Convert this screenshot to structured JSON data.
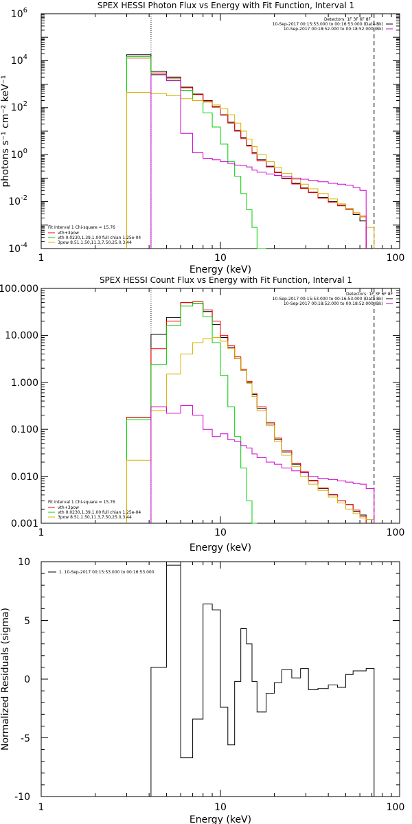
{
  "chart_data": [
    {
      "type": "line",
      "title": "SPEX HESSI Photon Flux vs Energy with Fit Function, Interval 1",
      "xlabel": "Energy (keV)",
      "ylabel": "photons s⁻¹ cm⁻² keV⁻¹",
      "xscale": "log",
      "yscale": "log",
      "xlim": [
        1,
        100
      ],
      "ylim": [
        0.0001,
        1000000
      ],
      "x_ticks": [
        "1",
        "10",
        "100"
      ],
      "y_ticks": [
        {
          "base": "10",
          "exp": "-4"
        },
        {
          "base": "10",
          "exp": "-2"
        },
        {
          "base": "10",
          "exp": "0"
        },
        {
          "base": "10",
          "exp": "2"
        },
        {
          "base": "10",
          "exp": "4"
        },
        {
          "base": "10",
          "exp": "6"
        }
      ],
      "vlines": [
        {
          "x": 4.1,
          "style": "dotted"
        },
        {
          "x": 72,
          "style": "dashed"
        }
      ],
      "legend_header": [
        "Detectors: 1F 3F 6F 8F",
        "10-Sep-2017 00:15:53.000 to 00:16:53.000 (Data-Bk)",
        "10-Sep-2017 00:18:52.000 to 00:18:52.000 (Bk)"
      ],
      "fit_legend": [
        {
          "text": "Fit Interval 1   Chi-square = 15.76",
          "color": "#000000"
        },
        {
          "text": "vth+3pow",
          "color": "#ff0000"
        },
        {
          "text": "vth 0.0230,1.39,1.00  full chian 1.25e-04",
          "color": "#00d000"
        },
        {
          "text": "3pow 8.51,1.50,11.3,7.50,25.0,3.44",
          "color": "#d8b000"
        }
      ],
      "bin_edges": [
        3,
        4.1,
        5,
        6,
        7,
        8,
        9,
        10,
        11,
        12,
        13,
        14,
        15,
        16,
        18,
        20,
        22,
        25,
        28,
        31,
        35,
        40,
        45,
        50,
        55,
        60,
        65,
        72
      ],
      "series": [
        {
          "name": "Data-Bk",
          "color": "#000000",
          "y_from": 4.1,
          "values": [
            18000,
            3500,
            2000,
            750,
            380,
            200,
            110,
            50,
            24,
            11,
            5.2,
            2.5,
            1.2,
            0.6,
            0.32,
            0.18,
            0.1,
            0.06,
            0.038,
            0.025,
            0.015,
            0.01,
            0.007,
            0.005,
            0.0028,
            0.0015
          ]
        },
        {
          "name": "vth+3pow",
          "color": "#ff0000",
          "y_from": 4.1,
          "values": [
            13000,
            3000,
            1800,
            700,
            360,
            190,
            105,
            48,
            22,
            10,
            4.8,
            2.3,
            1.1,
            0.55,
            0.3,
            0.17,
            0.095,
            0.056,
            0.036,
            0.024,
            0.014,
            0.0095,
            0.0066,
            0.0046,
            0.0033,
            0.0024
          ]
        },
        {
          "name": "vth",
          "color": "#00d000",
          "y_from": 0.0001,
          "values": [
            15000,
            2600,
            1500,
            550,
            200,
            60,
            15,
            2.8,
            0.5,
            0.12,
            0.022,
            0.0045,
            0.0008,
            0.0001,
            null,
            null,
            null,
            null,
            null,
            null,
            null,
            null,
            null,
            null,
            null,
            null,
            null
          ]
        },
        {
          "name": "3pow",
          "color": "#d8b000",
          "y_from": 0.0001,
          "values": [
            450,
            400,
            320,
            240,
            200,
            170,
            130,
            90,
            50,
            22,
            10,
            4.6,
            2.2,
            1,
            0.5,
            0.28,
            0.16,
            0.09,
            0.055,
            0.035,
            0.022,
            0.013,
            0.008,
            0.005,
            0.0032,
            0.0022,
            0.0008
          ]
        },
        {
          "name": "Bk",
          "color": "#cc00cc",
          "y_from": 0.0001,
          "values": [
            null,
            2500,
            1400,
            8,
            1.2,
            0.7,
            0.6,
            0.5,
            0.42,
            0.36,
            0.35,
            0.3,
            0.22,
            0.18,
            0.15,
            0.13,
            0.12,
            0.1,
            0.09,
            0.08,
            0.07,
            0.06,
            0.055,
            0.05,
            0.04,
            0.03
          ]
        }
      ]
    },
    {
      "type": "line",
      "title": "SPEX HESSI Count Flux vs Energy with Fit Function, Interval 1",
      "xlabel": "Energy (keV)",
      "ylabel": "",
      "xscale": "log",
      "yscale": "log",
      "xlim": [
        1,
        100
      ],
      "ylim": [
        0.001,
        100
      ],
      "x_ticks": [
        "1",
        "10",
        "100"
      ],
      "y_ticks": [
        "0.001",
        "0.010",
        "0.100",
        "1.000",
        "10.000",
        "100.000"
      ],
      "vlines": [
        {
          "x": 4.1,
          "style": "dotted"
        },
        {
          "x": 72,
          "style": "dashed"
        }
      ],
      "legend_header": [
        "Detectors: 1F 3F 6F 8F",
        "10-Sep-2017 00:15:53.000 to 00:16:53.000 (Data-Bk)",
        "10-Sep-2017 00:18:52.000 to 00:18:52.000 (Bk)"
      ],
      "fit_legend": [
        {
          "text": "Fit Interval 1   Chi-square = 15.76",
          "color": "#000000"
        },
        {
          "text": "vth+3pow",
          "color": "#ff0000"
        },
        {
          "text": "vth 0.0230,1.39,1.00  full chian 1.25e-04",
          "color": "#00d000"
        },
        {
          "text": "3pow 8.51,1.50,11.3,7.50,25.0,3.44",
          "color": "#d8b000"
        }
      ],
      "bin_edges": [
        3,
        4.1,
        5,
        6,
        7,
        8,
        9,
        10,
        11,
        12,
        13,
        14,
        15,
        16,
        18,
        20,
        22,
        25,
        28,
        31,
        35,
        40,
        45,
        50,
        55,
        60,
        65,
        72
      ],
      "series": [
        {
          "name": "Data-Bk",
          "color": "#000000",
          "y_from": 0.001,
          "values": [
            0.18,
            10.5,
            24,
            50,
            48,
            32,
            17,
            9,
            5.5,
            3.2,
            1.8,
            1.0,
            0.55,
            0.28,
            0.13,
            0.06,
            0.033,
            0.018,
            0.012,
            0.008,
            0.0055,
            0.004,
            0.003,
            0.0025,
            0.0018,
            0.0015
          ]
        },
        {
          "name": "vth+3pow",
          "color": "#ff0000",
          "y_from": 0.001,
          "values": [
            0.18,
            5.2,
            20,
            50,
            52,
            35,
            20,
            10,
            6,
            3.5,
            1.9,
            1.05,
            0.58,
            0.3,
            0.14,
            0.065,
            0.035,
            0.019,
            0.0125,
            0.0082,
            0.0056,
            0.0041,
            0.003,
            0.0025,
            0.0019,
            0.0014
          ]
        },
        {
          "name": "vth",
          "color": "#00d000",
          "y_from": 0.0001,
          "values": [
            0.16,
            2.4,
            16,
            42,
            48,
            25,
            7,
            1.4,
            0.3,
            0.07,
            0.015,
            0.003,
            0.001,
            null,
            null,
            null,
            null,
            null,
            null,
            null,
            null,
            null,
            null,
            null,
            null,
            null,
            null
          ]
        },
        {
          "name": "3pow",
          "color": "#d8b000",
          "y_from": 0.0001,
          "values": [
            0.022,
            0.25,
            1.5,
            4,
            7,
            8.5,
            9,
            7.5,
            5.2,
            3.2,
            1.8,
            0.95,
            0.5,
            0.25,
            0.12,
            0.055,
            0.028,
            0.016,
            0.01,
            0.0068,
            0.005,
            0.0036,
            0.0027,
            0.002,
            0.0016,
            0.0013,
            0.0012
          ]
        },
        {
          "name": "Bk",
          "color": "#cc00cc",
          "y_from": 0.0001,
          "values": [
            null,
            0.3,
            0.22,
            0.32,
            0.2,
            0.1,
            0.07,
            0.08,
            0.06,
            0.055,
            0.045,
            0.04,
            0.03,
            0.025,
            0.02,
            0.018,
            0.015,
            0.013,
            0.012,
            0.01,
            0.009,
            0.0085,
            0.008,
            0.0075,
            0.007,
            0.0068,
            0.0055
          ]
        }
      ]
    },
    {
      "type": "line",
      "title": "",
      "xlabel": "Energy (keV)",
      "ylabel": "Normalized Residuals (sigma)",
      "xscale": "log",
      "yscale": "linear",
      "xlim": [
        1,
        100
      ],
      "ylim": [
        -10,
        10
      ],
      "x_ticks": [
        "1",
        "10",
        "100"
      ],
      "y_ticks": [
        "-10",
        "-5",
        "0",
        "5",
        "10"
      ],
      "legend": [
        "1. 10-Sep-2017 00:15:53.000 to 00:16:53.000"
      ],
      "bin_edges": [
        4.1,
        5,
        6,
        7,
        8,
        9,
        10,
        11,
        12,
        13,
        14,
        15,
        16,
        18,
        20,
        22,
        25,
        28,
        31,
        35,
        40,
        45,
        50,
        55,
        60,
        65,
        72
      ],
      "series": [
        {
          "name": "1. 10-Sep-2017 00:15:53.000 to 00:16:53.000",
          "color": "#000000",
          "y_from": -10,
          "y_to": -10,
          "values": [
            1,
            9.7,
            -6.7,
            -3.4,
            6.4,
            5.9,
            -2.4,
            -5.6,
            -0.2,
            4.3,
            3,
            -0.2,
            -2.8,
            -1.2,
            -0.3,
            0.8,
            0.1,
            0.9,
            -0.9,
            -0.8,
            -0.5,
            -0.7,
            0.4,
            0.7,
            0.7,
            0.9
          ]
        }
      ]
    }
  ]
}
